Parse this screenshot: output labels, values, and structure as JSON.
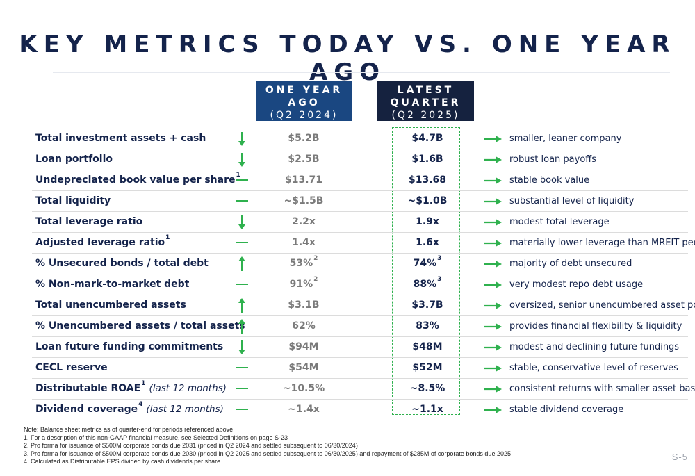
{
  "title": "KEY METRICS TODAY VS. ONE YEAR AGO",
  "colors": {
    "navy": "#14234b",
    "blue_header": "#1a4781",
    "dark_header": "#15223f",
    "green": "#2fb14e",
    "gray_value": "#7a7a7a"
  },
  "columns": {
    "ago": {
      "line1": "ONE YEAR",
      "line2": "AGO",
      "line3": "(Q2 2024)"
    },
    "latest": {
      "line1": "LATEST",
      "line2": "QUARTER",
      "line3": "(Q2 2025)"
    }
  },
  "rows": [
    {
      "label": "Total investment assets + cash",
      "sup": "",
      "note": "",
      "trend": "down",
      "ago": "$5.2B",
      "ago_sup": "",
      "latest": "$4.7B",
      "latest_sup": "",
      "comment": "smaller, leaner company"
    },
    {
      "label": "Loan portfolio",
      "sup": "",
      "note": "",
      "trend": "down",
      "ago": "$2.5B",
      "ago_sup": "",
      "latest": "$1.6B",
      "latest_sup": "",
      "comment": "robust loan payoffs"
    },
    {
      "label": "Undepreciated book value per share",
      "sup": "1",
      "note": "",
      "trend": "flat",
      "ago": "$13.71",
      "ago_sup": "",
      "latest": "$13.68",
      "latest_sup": "",
      "comment": "stable book value"
    },
    {
      "label": "Total liquidity",
      "sup": "",
      "note": "",
      "trend": "flat",
      "ago": "~$1.5B",
      "ago_sup": "",
      "latest": "~$1.0B",
      "latest_sup": "",
      "comment": "substantial level of liquidity"
    },
    {
      "label": "Total leverage ratio",
      "sup": "",
      "note": "",
      "trend": "down",
      "ago": "2.2x",
      "ago_sup": "",
      "latest": "1.9x",
      "latest_sup": "",
      "comment": "modest total leverage"
    },
    {
      "label": "Adjusted leverage ratio",
      "sup": "1",
      "note": "",
      "trend": "flat",
      "ago": "1.4x",
      "ago_sup": "",
      "latest": "1.6x",
      "latest_sup": "",
      "comment": "materially lower leverage than MREIT peers"
    },
    {
      "label": "% Unsecured bonds / total debt",
      "sup": "",
      "note": "",
      "trend": "up",
      "ago": "53%",
      "ago_sup": "2",
      "latest": "74%",
      "latest_sup": "3",
      "comment": "majority of debt unsecured"
    },
    {
      "label": "% Non-mark-to-market debt",
      "sup": "",
      "note": "",
      "trend": "flat",
      "ago": "91%",
      "ago_sup": "2",
      "latest": "88%",
      "latest_sup": "3",
      "comment": "very modest repo debt usage"
    },
    {
      "label": "Total unencumbered assets",
      "sup": "",
      "note": "",
      "trend": "up",
      "ago": "$3.1B",
      "ago_sup": "",
      "latest": "$3.7B",
      "latest_sup": "",
      "comment": "oversized, senior unencumbered asset pool"
    },
    {
      "label": "% Unencumbered assets / total assets",
      "sup": "",
      "note": "",
      "trend": "up",
      "ago": "62%",
      "ago_sup": "",
      "latest": "83%",
      "latest_sup": "",
      "comment": "provides financial flexibility & liquidity"
    },
    {
      "label": "Loan future funding commitments",
      "sup": "",
      "note": "",
      "trend": "down",
      "ago": "$94M",
      "ago_sup": "",
      "latest": "$48M",
      "latest_sup": "",
      "comment": "modest and declining future fundings"
    },
    {
      "label": "CECL reserve",
      "sup": "",
      "note": "",
      "trend": "flat",
      "ago": "$54M",
      "ago_sup": "",
      "latest": "$52M",
      "latest_sup": "",
      "comment": "stable, conservative level of reserves"
    },
    {
      "label": "Distributable ROAE",
      "sup": "1",
      "note": "(last 12 months)",
      "trend": "flat",
      "ago": "~10.5%",
      "ago_sup": "",
      "latest": "~8.5%",
      "latest_sup": "",
      "comment": "consistent returns with smaller asset base"
    },
    {
      "label": "Dividend coverage",
      "sup": "4",
      "note": "(last 12 months)",
      "trend": "flat",
      "ago": "~1.4x",
      "ago_sup": "",
      "latest": "~1.1x",
      "latest_sup": "",
      "comment": "stable dividend coverage"
    }
  ],
  "footnotes": [
    "Note: Balance sheet metrics as of quarter-end for periods referenced above",
    "1. For a description of this non-GAAP financial measure, see Selected Definitions on page S-23",
    "2. Pro forma for issuance of $500M corporate bonds due 2031 (priced in Q2 2024 and settled subsequent to 06/30/2024)",
    "3. Pro forma for issuance of $500M corporate bonds due 2030 (priced in Q2 2025 and settled subsequent to 06/30/2025) and repayment of $285M of corporate bonds due 2025",
    "4. Calculated as Distributable EPS divided by cash dividends per share"
  ],
  "page_number": "S-5"
}
